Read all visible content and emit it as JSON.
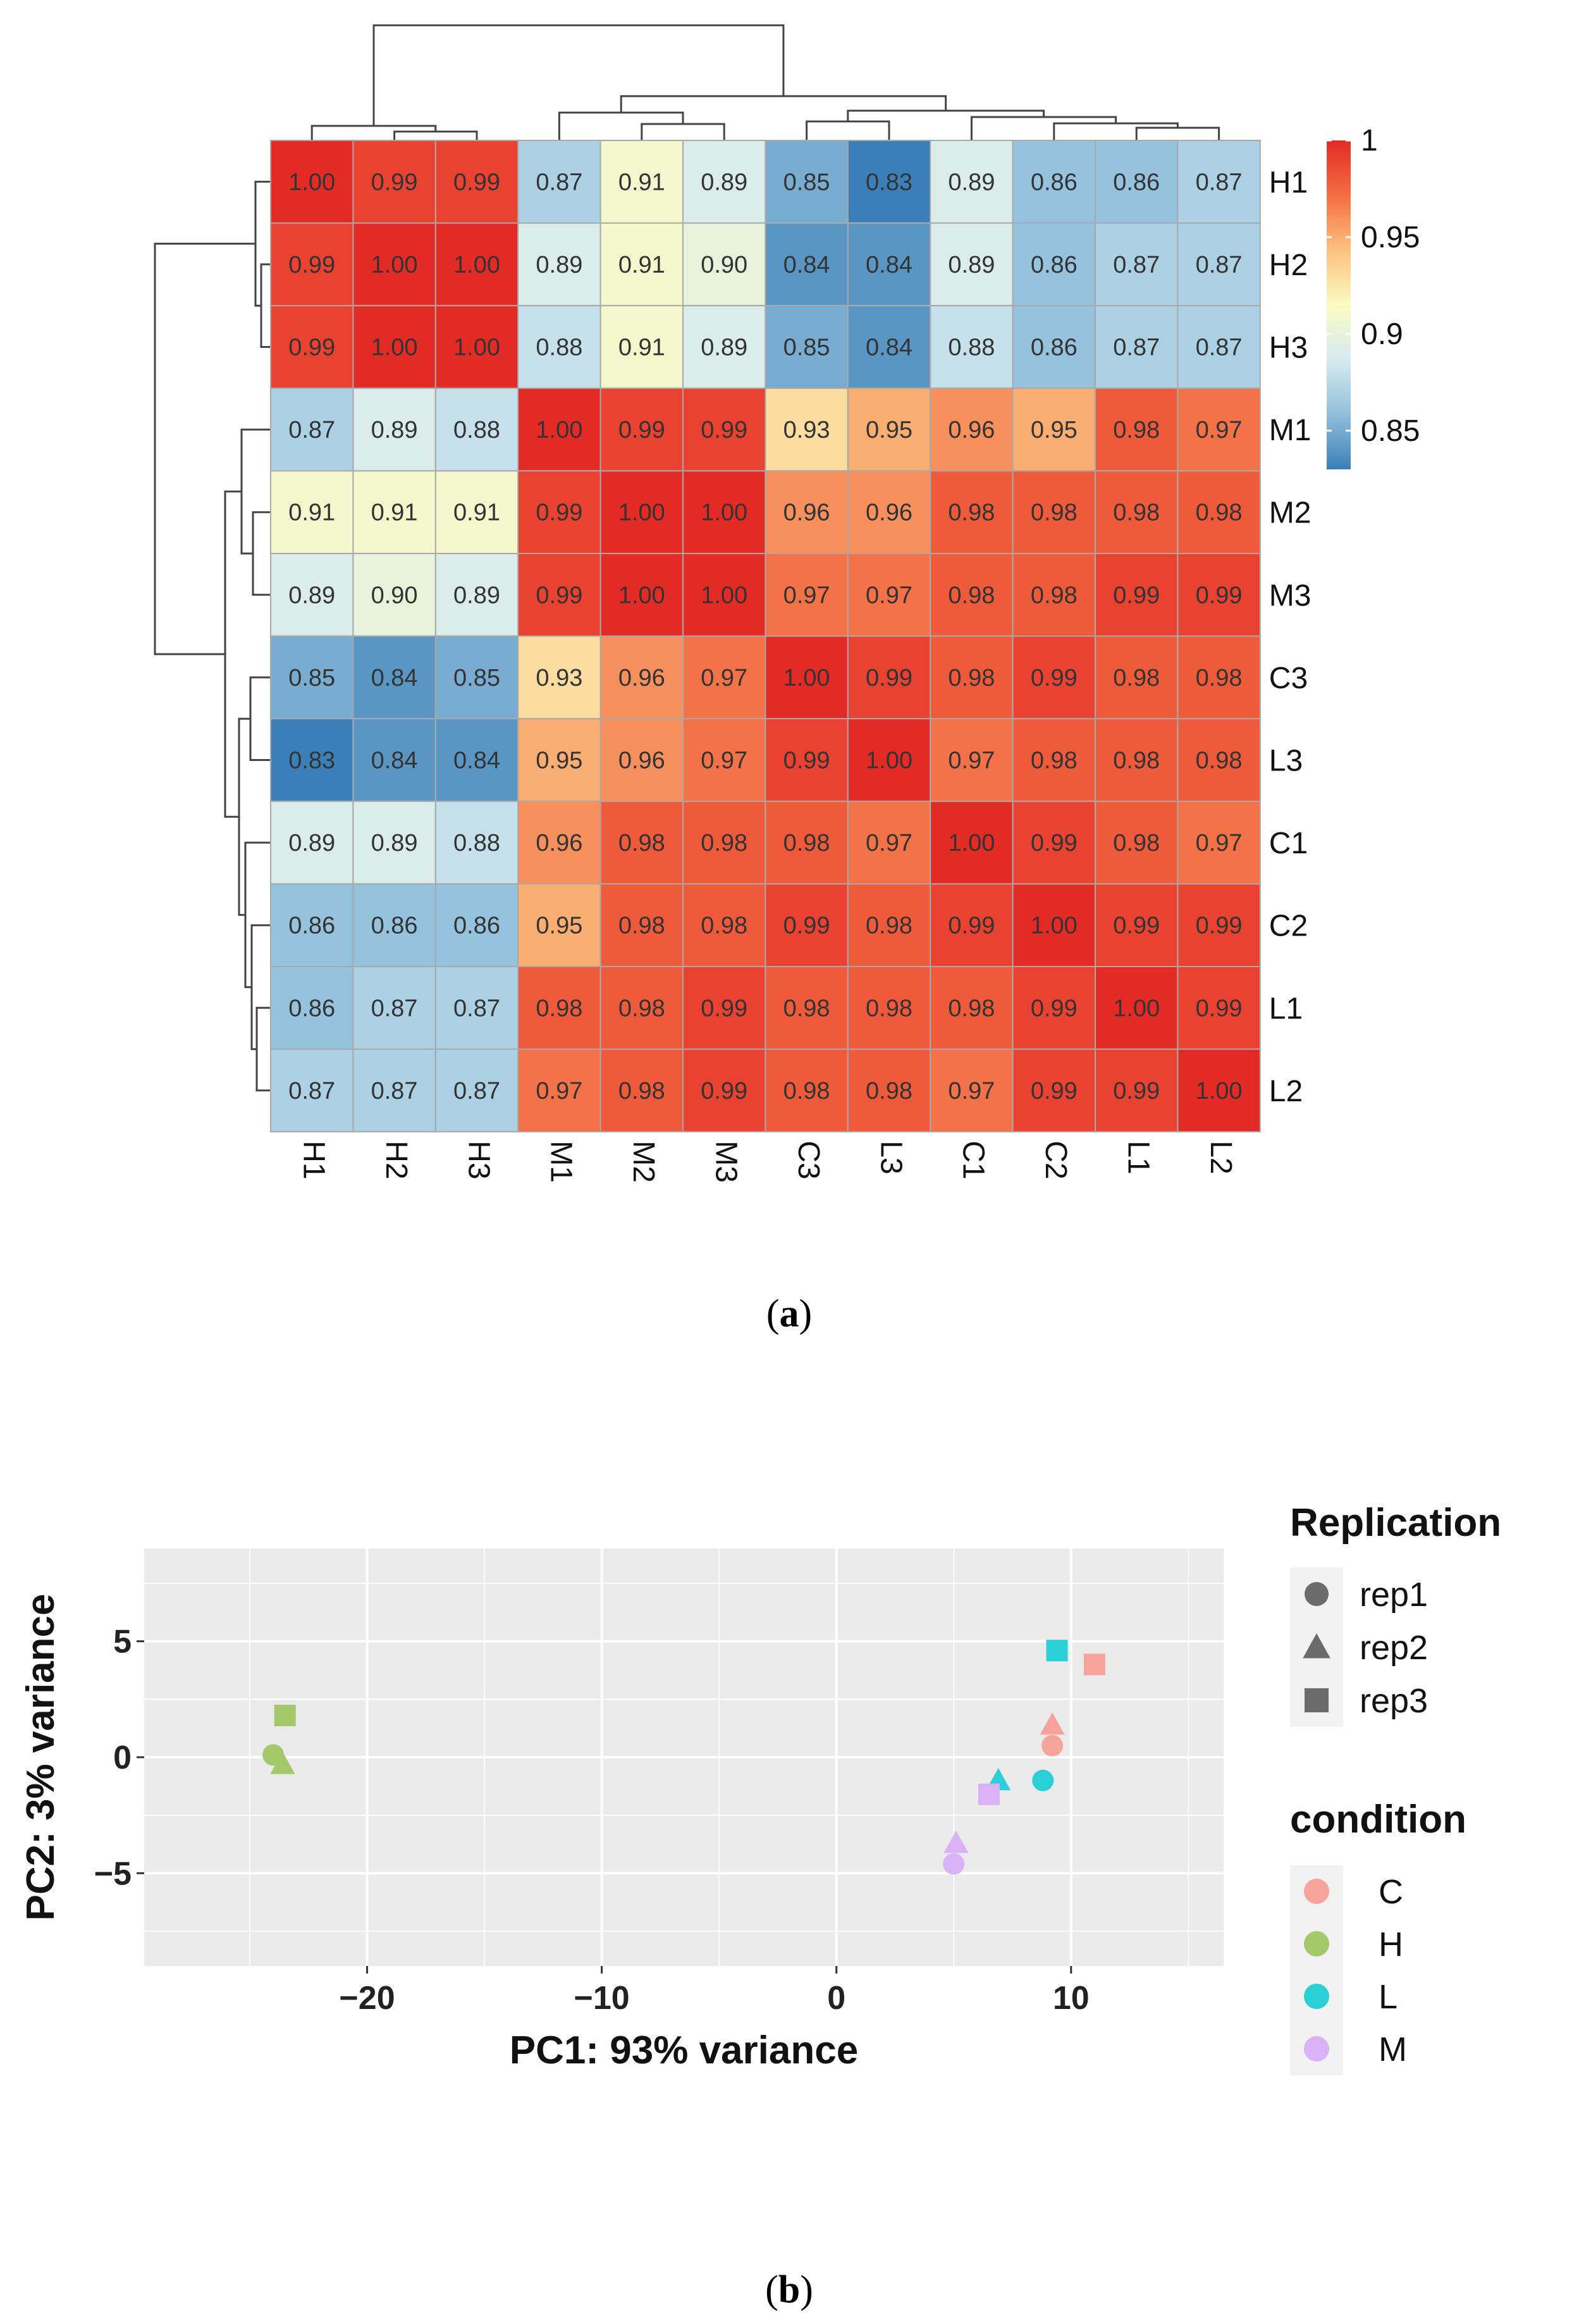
{
  "chart_data": [
    {
      "type": "heatmap",
      "panel_label": "(a)",
      "panel_label_bold": "a",
      "rows": [
        "H1",
        "H2",
        "H3",
        "M1",
        "M2",
        "M3",
        "C3",
        "L3",
        "C1",
        "C2",
        "L1",
        "L2"
      ],
      "columns": [
        "H1",
        "H2",
        "H3",
        "M1",
        "M2",
        "M3",
        "C3",
        "L3",
        "C1",
        "C2",
        "L1",
        "L2"
      ],
      "values": [
        [
          "1.00",
          "0.99",
          "0.99",
          "0.87",
          "0.91",
          "0.89",
          "0.85",
          "0.83",
          "0.89",
          "0.86",
          "0.86",
          "0.87"
        ],
        [
          "0.99",
          "1.00",
          "1.00",
          "0.89",
          "0.91",
          "0.90",
          "0.84",
          "0.84",
          "0.89",
          "0.86",
          "0.87",
          "0.87"
        ],
        [
          "0.99",
          "1.00",
          "1.00",
          "0.88",
          "0.91",
          "0.89",
          "0.85",
          "0.84",
          "0.88",
          "0.86",
          "0.87",
          "0.87"
        ],
        [
          "0.87",
          "0.89",
          "0.88",
          "1.00",
          "0.99",
          "0.99",
          "0.93",
          "0.95",
          "0.96",
          "0.95",
          "0.98",
          "0.97"
        ],
        [
          "0.91",
          "0.91",
          "0.91",
          "0.99",
          "1.00",
          "1.00",
          "0.96",
          "0.96",
          "0.98",
          "0.98",
          "0.98",
          "0.98"
        ],
        [
          "0.89",
          "0.90",
          "0.89",
          "0.99",
          "1.00",
          "1.00",
          "0.97",
          "0.97",
          "0.98",
          "0.98",
          "0.99",
          "0.99"
        ],
        [
          "0.85",
          "0.84",
          "0.85",
          "0.93",
          "0.96",
          "0.97",
          "1.00",
          "0.99",
          "0.98",
          "0.99",
          "0.98",
          "0.98"
        ],
        [
          "0.83",
          "0.84",
          "0.84",
          "0.95",
          "0.96",
          "0.97",
          "0.99",
          "1.00",
          "0.97",
          "0.98",
          "0.98",
          "0.98"
        ],
        [
          "0.89",
          "0.89",
          "0.88",
          "0.96",
          "0.98",
          "0.98",
          "0.98",
          "0.97",
          "1.00",
          "0.99",
          "0.98",
          "0.97"
        ],
        [
          "0.86",
          "0.86",
          "0.86",
          "0.95",
          "0.98",
          "0.98",
          "0.99",
          "0.98",
          "0.99",
          "1.00",
          "0.99",
          "0.99"
        ],
        [
          "0.86",
          "0.87",
          "0.87",
          "0.98",
          "0.98",
          "0.99",
          "0.98",
          "0.98",
          "0.98",
          "0.99",
          "1.00",
          "0.99"
        ],
        [
          "0.87",
          "0.87",
          "0.87",
          "0.97",
          "0.98",
          "0.99",
          "0.98",
          "0.98",
          "0.97",
          "0.99",
          "0.99",
          "1.00"
        ]
      ],
      "color_range": [
        0.83,
        1.0
      ],
      "colorbar_ticks": [
        {
          "value": 1.0,
          "label": "1"
        },
        {
          "value": 0.95,
          "label": "0.95"
        },
        {
          "value": 0.9,
          "label": "0.9"
        },
        {
          "value": 0.85,
          "label": "0.85"
        }
      ],
      "colors": {
        "low": "#2f79b5",
        "mid": "#fdfdbf",
        "high": "#e8302a",
        "stops": [
          "#3b7fb8",
          "#91bfdb",
          "#d6ebf0",
          "#fbfbc4",
          "#fcc27f",
          "#f46d43",
          "#e32b26"
        ]
      },
      "dendrogram": "row and column hierarchical clustering"
    },
    {
      "type": "scatter",
      "panel_label": "(b)",
      "panel_label_bold": "b",
      "xlabel": "PC1: 93% variance",
      "ylabel": "PC2: 3% variance",
      "xlim": [
        -29.5,
        16.5
      ],
      "ylim": [
        -9,
        9
      ],
      "xticks": [
        -20,
        -10,
        0,
        10
      ],
      "xtick_labels": [
        "−20",
        "−10",
        "0",
        "10"
      ],
      "yticks": [
        -5,
        0,
        5
      ],
      "ytick_labels": [
        "−5",
        "0",
        "5"
      ],
      "grid": true,
      "points": [
        {
          "x": -24.0,
          "y": 0.1,
          "condition": "H",
          "replication": "rep1"
        },
        {
          "x": -23.6,
          "y": -0.3,
          "condition": "H",
          "replication": "rep2"
        },
        {
          "x": -23.5,
          "y": 1.8,
          "condition": "H",
          "replication": "rep3"
        },
        {
          "x": 9.2,
          "y": 0.5,
          "condition": "C",
          "replication": "rep1"
        },
        {
          "x": 9.2,
          "y": 1.4,
          "condition": "C",
          "replication": "rep2"
        },
        {
          "x": 11.0,
          "y": 4.0,
          "condition": "C",
          "replication": "rep3"
        },
        {
          "x": 8.8,
          "y": -1.0,
          "condition": "L",
          "replication": "rep1"
        },
        {
          "x": 6.9,
          "y": -1.0,
          "condition": "L",
          "replication": "rep2"
        },
        {
          "x": 9.4,
          "y": 4.6,
          "condition": "L",
          "replication": "rep3"
        },
        {
          "x": 5.0,
          "y": -4.6,
          "condition": "M",
          "replication": "rep1"
        },
        {
          "x": 5.1,
          "y": -3.7,
          "condition": "M",
          "replication": "rep2"
        },
        {
          "x": 6.5,
          "y": -1.6,
          "condition": "M",
          "replication": "rep3"
        }
      ],
      "legend_position": "right",
      "legend_shape": {
        "title": "Replication",
        "items": [
          {
            "label": "rep1",
            "shape": "circle"
          },
          {
            "label": "rep2",
            "shape": "triangle"
          },
          {
            "label": "rep3",
            "shape": "square"
          }
        ]
      },
      "legend_color": {
        "title": "condition",
        "items": [
          {
            "label": "C",
            "color": "#f8a49c"
          },
          {
            "label": "H",
            "color": "#a3c96a"
          },
          {
            "label": "L",
            "color": "#2ad0d6"
          },
          {
            "label": "M",
            "color": "#dcb2f6"
          }
        ]
      },
      "panel_bg": "#ebebeb",
      "legend_key_bg": "#f2f2f2",
      "shape_legend_color": "#6b6b6b"
    }
  ]
}
